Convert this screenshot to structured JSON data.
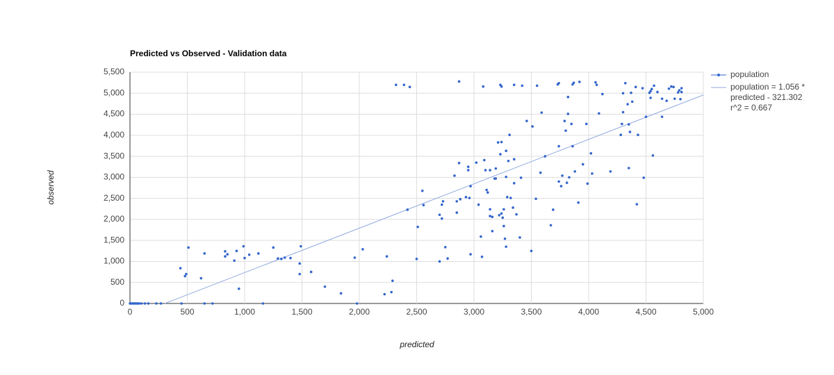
{
  "chart_data": {
    "type": "scatter",
    "title": "Predicted vs Observed - Validation data",
    "x_label": "predicted",
    "y_label": "observed",
    "series": [
      {
        "name": "population",
        "color": "#3366cc",
        "x": [
          0,
          10,
          20,
          30,
          40,
          50,
          60,
          70,
          80,
          100,
          130,
          160,
          230,
          270,
          450,
          650,
          720,
          1160,
          1980,
          440,
          480,
          490,
          510,
          620,
          650,
          830,
          830,
          850,
          910,
          930,
          950,
          990,
          1000,
          1040,
          1120,
          1250,
          1290,
          1320,
          1350,
          1400,
          1480,
          1480,
          1490,
          1580,
          1700,
          1840,
          1960,
          2030,
          2220,
          2240,
          2280,
          2290,
          2320,
          2390,
          2440,
          2420,
          2500,
          2510,
          2550,
          2560,
          2700,
          2700,
          2720,
          2730,
          2720,
          2750,
          2770,
          2830,
          2850,
          2850,
          2870,
          2870,
          2880,
          2930,
          2950,
          2950,
          2960,
          2970,
          2970,
          3020,
          3040,
          3060,
          3070,
          3080,
          3090,
          3100,
          3110,
          3120,
          3140,
          3140,
          3140,
          3160,
          3160,
          3180,
          3190,
          3190,
          3210,
          3220,
          3230,
          3240,
          3230,
          3240,
          3240,
          3250,
          3260,
          3260,
          3270,
          3280,
          3280,
          3280,
          3290,
          3300,
          3310,
          3320,
          3340,
          3350,
          3350,
          3350,
          3370,
          3400,
          3410,
          3420,
          3460,
          3500,
          3510,
          3540,
          3550,
          3580,
          3590,
          3620,
          3670,
          3690,
          3730,
          3740,
          3740,
          3740,
          3760,
          3770,
          3790,
          3800,
          3810,
          3820,
          3820,
          3830,
          3850,
          3860,
          3860,
          3870,
          3880,
          3910,
          3920,
          3950,
          3980,
          3990,
          4020,
          4030,
          4060,
          4070,
          4090,
          4120,
          4190,
          4280,
          4290,
          4300,
          4300,
          4320,
          4340,
          4350,
          4350,
          4360,
          4370,
          4380,
          4410,
          4420,
          4430,
          4470,
          4480,
          4500,
          4530,
          4540,
          4540,
          4550,
          4560,
          4570,
          4600,
          4640,
          4640,
          4680,
          4700,
          4720,
          4740,
          4750,
          4780,
          4790,
          4800,
          4810,
          4810
        ],
        "y": [
          0,
          0,
          0,
          0,
          0,
          0,
          0,
          0,
          0,
          0,
          0,
          0,
          0,
          0,
          0,
          0,
          0,
          0,
          0,
          840,
          650,
          700,
          1330,
          600,
          1190,
          1240,
          1120,
          1170,
          1020,
          1250,
          350,
          1360,
          1080,
          1160,
          1190,
          1330,
          1070,
          1060,
          1090,
          1080,
          950,
          700,
          1360,
          750,
          400,
          240,
          1090,
          1290,
          220,
          1120,
          270,
          540,
          5200,
          5200,
          5150,
          2230,
          1060,
          1820,
          2680,
          2340,
          1000,
          2110,
          2350,
          2430,
          2020,
          1340,
          1070,
          3040,
          2160,
          2430,
          5280,
          3340,
          2480,
          2530,
          3170,
          3250,
          2510,
          1170,
          2790,
          3350,
          2350,
          1590,
          1110,
          5160,
          3410,
          3170,
          2700,
          2640,
          3170,
          2240,
          2080,
          1720,
          2060,
          2970,
          2970,
          3210,
          3830,
          2100,
          5200,
          5160,
          3550,
          3840,
          2140,
          2040,
          1840,
          2240,
          1540,
          3010,
          1350,
          3630,
          2530,
          3390,
          4010,
          2510,
          2280,
          5200,
          3430,
          2860,
          2120,
          1570,
          2990,
          5180,
          4340,
          1250,
          4210,
          2490,
          5180,
          3110,
          4540,
          3500,
          1860,
          2230,
          5210,
          5240,
          3740,
          2900,
          2790,
          3040,
          4340,
          4110,
          2870,
          4910,
          4510,
          3000,
          4270,
          3740,
          5210,
          5250,
          3140,
          2400,
          5270,
          3310,
          4270,
          2850,
          3570,
          3090,
          5260,
          5200,
          4520,
          4980,
          3140,
          4010,
          4270,
          4550,
          5000,
          5240,
          4740,
          3220,
          4260,
          4080,
          5010,
          4800,
          5150,
          2360,
          4010,
          5120,
          2990,
          4440,
          5010,
          5050,
          4890,
          5100,
          3520,
          5180,
          5030,
          4440,
          4870,
          4820,
          5110,
          5160,
          5150,
          4870,
          5020,
          5070,
          4860,
          5120,
          5030
        ]
      }
    ],
    "trendline": {
      "label": [
        "population = 1.056 *",
        "predicted - 321.302",
        "r^2 = 0.667"
      ],
      "slope": 1.056,
      "intercept": -321.302,
      "color": "#91a9e0"
    },
    "xlim": [
      0,
      5000
    ],
    "xticks": [
      0,
      500,
      {
        "value": 1000,
        "label": "1,000"
      },
      {
        "value": 1500,
        "label": "1,500"
      },
      {
        "value": 2000,
        "label": "2,000"
      },
      {
        "value": 2500,
        "label": "2,500"
      },
      {
        "value": 3000,
        "label": "3,000"
      },
      {
        "value": 3500,
        "label": "3,500"
      },
      {
        "value": 4000,
        "label": "4,000"
      },
      {
        "value": 4500,
        "label": "4,500"
      },
      {
        "value": 5000,
        "label": "5,000"
      }
    ],
    "ylim": [
      0,
      5500
    ],
    "yticks": [
      0,
      500,
      {
        "value": 1000,
        "label": "1,000"
      },
      {
        "value": 1500,
        "label": "1,500"
      },
      {
        "value": 2000,
        "label": "2,000"
      },
      {
        "value": 2500,
        "label": "2,500"
      },
      {
        "value": 3000,
        "label": "3,000"
      },
      {
        "value": 3500,
        "label": "3,500"
      },
      {
        "value": 4000,
        "label": "4,000"
      },
      {
        "value": 4500,
        "label": "4,500"
      },
      {
        "value": 5000,
        "label": "5,000"
      },
      {
        "value": 5500,
        "label": "5,500"
      }
    ],
    "grid": true,
    "legend": "right"
  }
}
